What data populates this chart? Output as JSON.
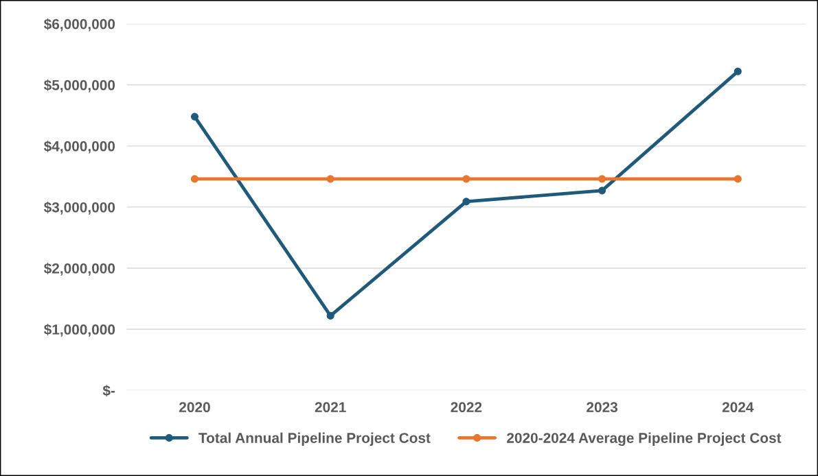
{
  "chart_data": {
    "type": "line",
    "categories": [
      "2020",
      "2021",
      "2022",
      "2023",
      "2024"
    ],
    "series": [
      {
        "name": "Total Annual Pipeline Project Cost",
        "color": "#1f5a7a",
        "values": [
          4480000,
          1220000,
          3090000,
          3270000,
          5220000
        ]
      },
      {
        "name": "2020-2024 Average Pipeline Project Cost",
        "color": "#e8762d",
        "values": [
          3460000,
          3460000,
          3460000,
          3460000,
          3460000
        ]
      }
    ],
    "ylim": [
      0,
      6000000
    ],
    "yticks": [
      {
        "value": 0,
        "label": "$-"
      },
      {
        "value": 1000000,
        "label": "$1,000,000"
      },
      {
        "value": 2000000,
        "label": "$2,000,000"
      },
      {
        "value": 3000000,
        "label": "$3,000,000"
      },
      {
        "value": 4000000,
        "label": "$4,000,000"
      },
      {
        "value": 5000000,
        "label": "$5,000,000"
      },
      {
        "value": 6000000,
        "label": "$6,000,000"
      }
    ],
    "grid": "y",
    "legend": "bottom",
    "marker": "circle",
    "line_style": "solid"
  }
}
